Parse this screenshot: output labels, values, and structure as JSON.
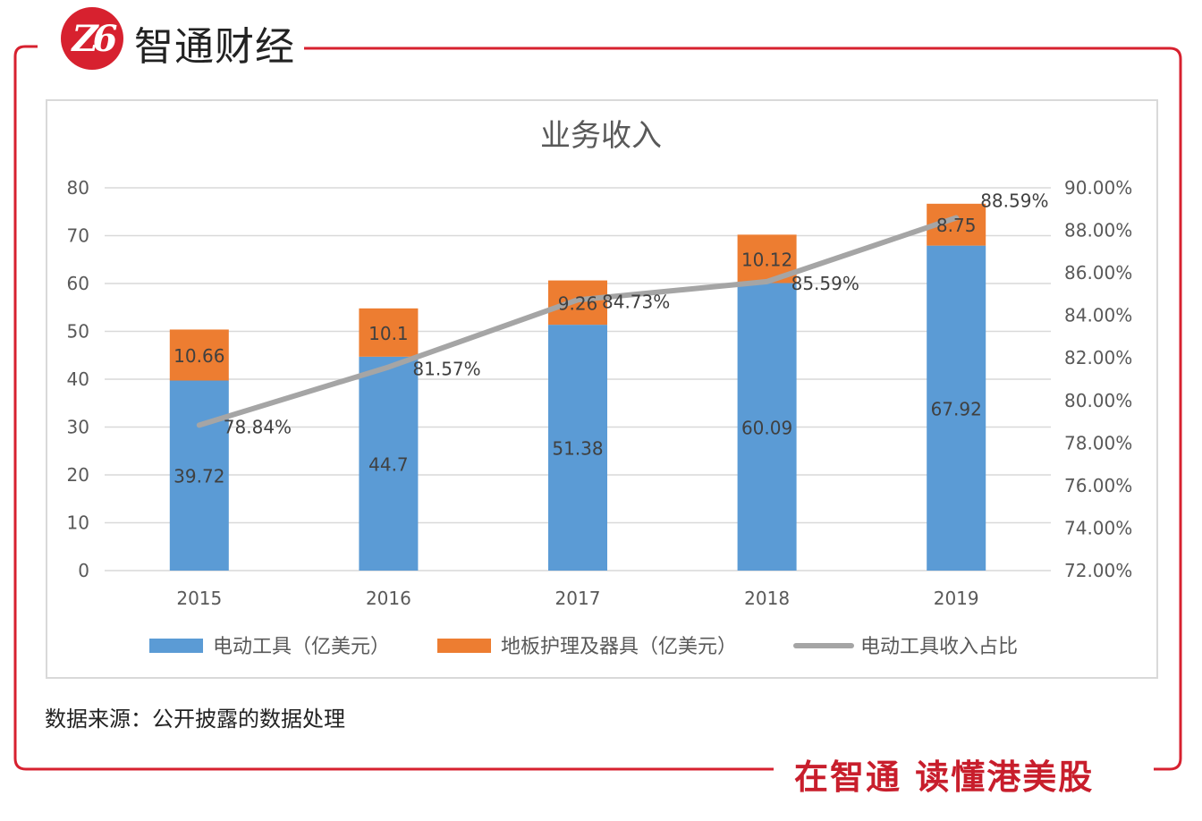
{
  "branding": {
    "logo_text": "Z6",
    "name": "智通财经",
    "slogan": "在智通 读懂港美股",
    "frame_color": "#d7212f"
  },
  "source_note": "数据来源：公开披露的数据处理",
  "chart_data": {
    "type": "bar",
    "stacked": true,
    "title": "业务收入",
    "categories": [
      "2015",
      "2016",
      "2017",
      "2018",
      "2019"
    ],
    "series": [
      {
        "name": "电动工具（亿美元）",
        "kind": "bar",
        "axis": "left",
        "color": "#5b9bd5",
        "values": [
          39.72,
          44.7,
          51.38,
          60.09,
          67.92
        ],
        "labels": [
          "39.72",
          "44.7",
          "51.38",
          "60.09",
          "67.92"
        ]
      },
      {
        "name": "地板护理及器具（亿美元）",
        "kind": "bar",
        "axis": "left",
        "color": "#ed7d31",
        "values": [
          10.66,
          10.1,
          9.26,
          10.12,
          8.75
        ],
        "labels": [
          "10.66",
          "10.1",
          "9.26",
          "10.12",
          "8.75"
        ]
      },
      {
        "name": "电动工具收入占比",
        "kind": "line",
        "axis": "right",
        "color": "#a5a5a5",
        "values": [
          78.84,
          81.57,
          84.73,
          85.59,
          88.59
        ],
        "labels": [
          "78.84%",
          "81.57%",
          "84.73%",
          "85.59%",
          "88.59%"
        ]
      }
    ],
    "y_left": {
      "min": 0,
      "max": 80,
      "step": 10,
      "ticks": [
        "0",
        "10",
        "20",
        "30",
        "40",
        "50",
        "60",
        "70",
        "80"
      ]
    },
    "y_right": {
      "min": 72,
      "max": 90,
      "step": 2,
      "ticks": [
        "72.00%",
        "74.00%",
        "76.00%",
        "78.00%",
        "80.00%",
        "82.00%",
        "84.00%",
        "86.00%",
        "88.00%",
        "90.00%"
      ]
    },
    "xlabel": "",
    "ylabel": "",
    "grid": true,
    "legend_position": "bottom"
  }
}
